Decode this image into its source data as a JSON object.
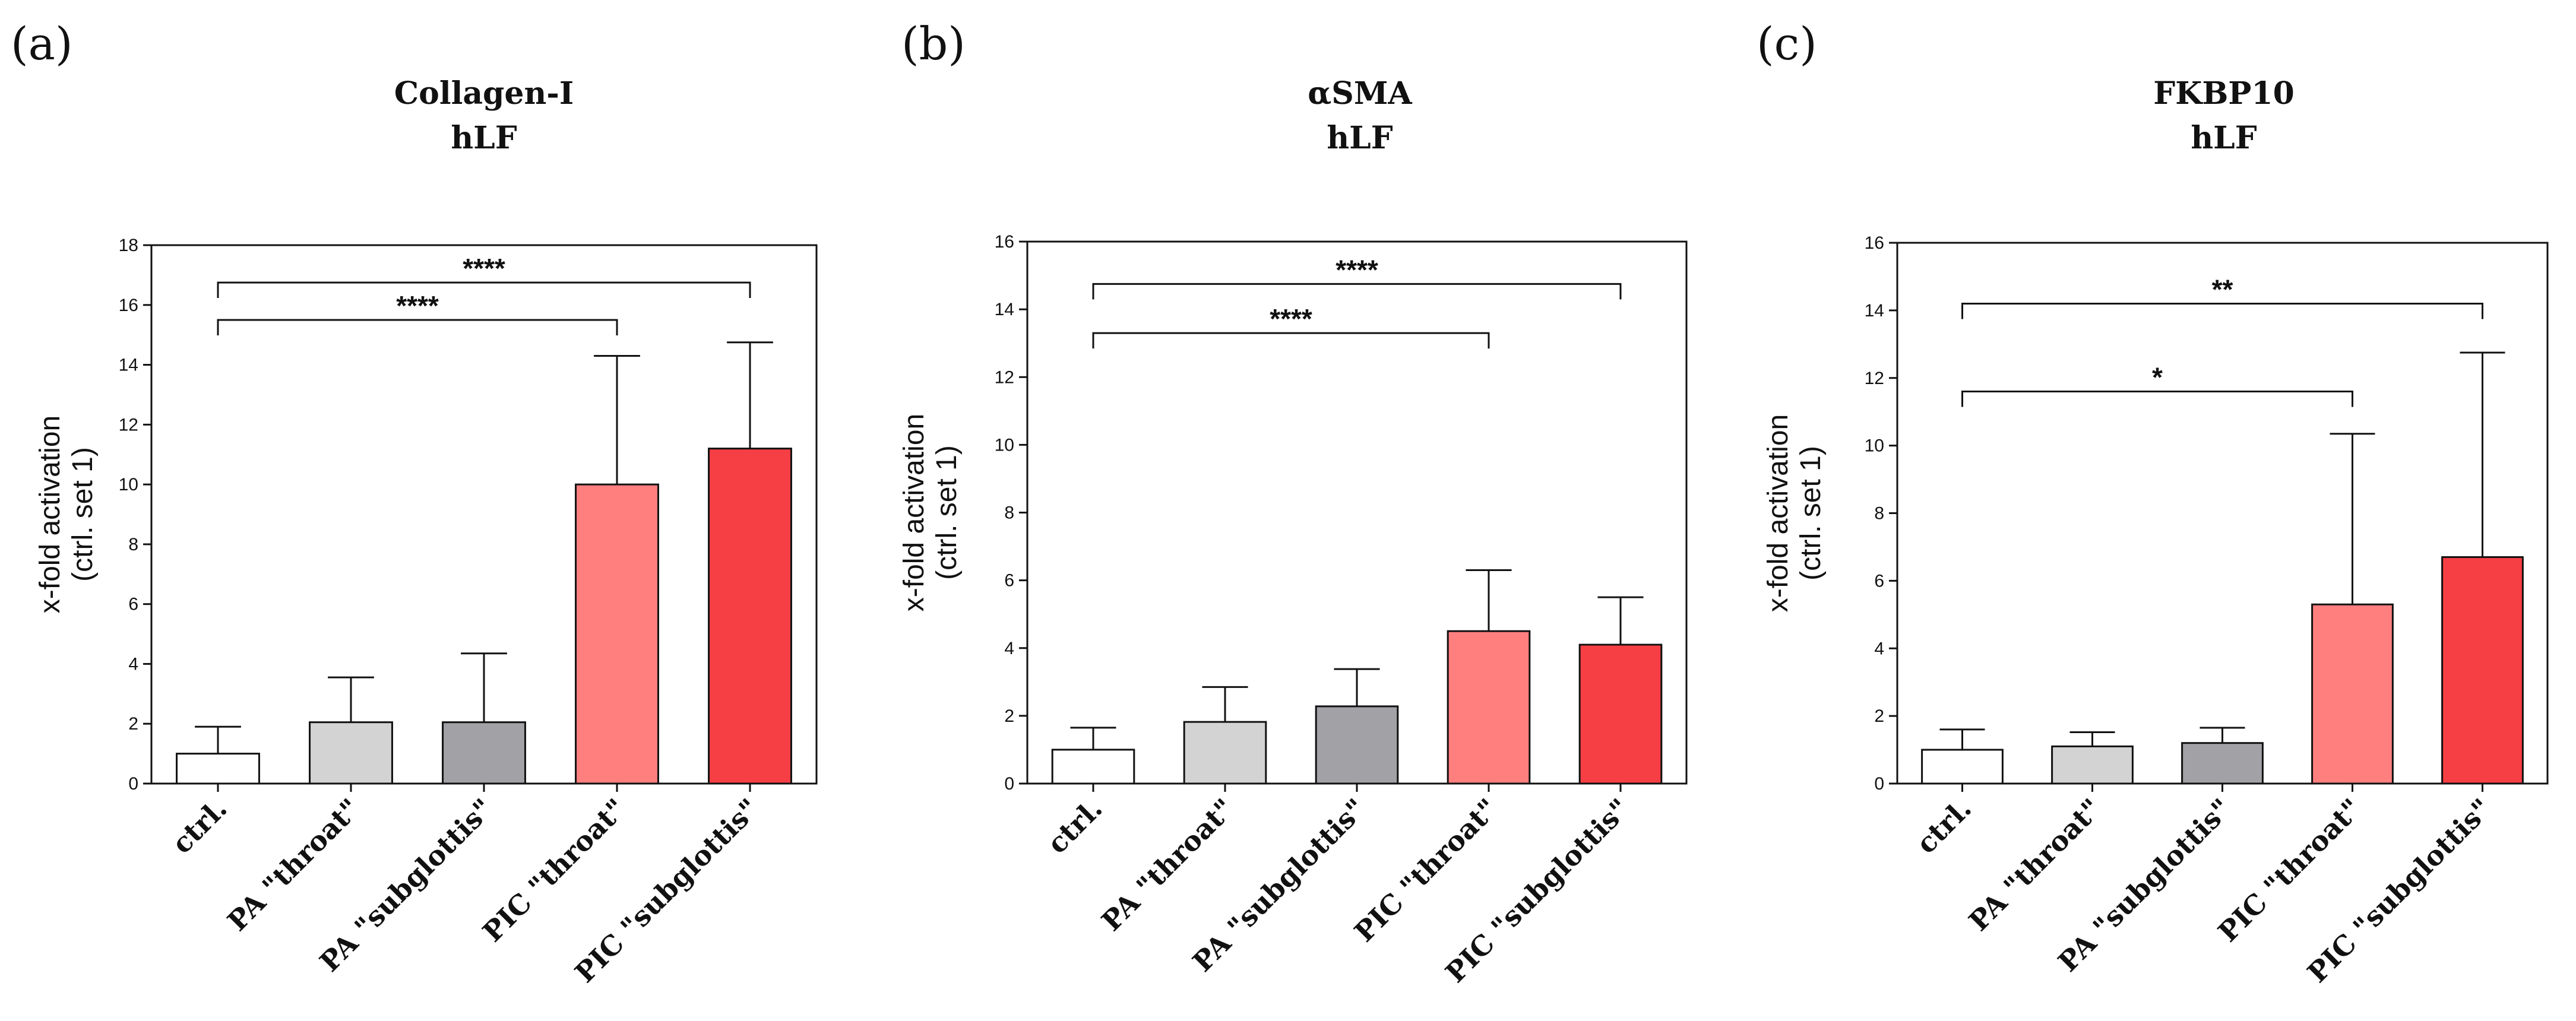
{
  "chart_data": [
    {
      "type": "bar",
      "panel": "(a)",
      "title": "Collagen-I",
      "subtitle": "hLF",
      "ylabel": "x-fold activation",
      "ylabel2": "(ctrl. set 1)",
      "ylim": [
        0,
        18
      ],
      "yticks": [
        0,
        2,
        4,
        6,
        8,
        10,
        12,
        14,
        16,
        18
      ],
      "categories": [
        "ctrl.",
        "PA \"throat\"",
        "PA \"subglottis\"",
        "PIC \"throat\"",
        "PIC \"subglottis\""
      ],
      "values": [
        1.0,
        2.05,
        2.05,
        10.0,
        11.2
      ],
      "errors": [
        0.9,
        1.5,
        2.3,
        4.3,
        3.55
      ],
      "colors": [
        "#ffffff",
        "#d3d3d3",
        "#a1a1a6",
        "#ff7f7f",
        "#f63f44"
      ],
      "significance": [
        {
          "from": 0,
          "to": 3,
          "y": 15.5,
          "label": "****"
        },
        {
          "from": 0,
          "to": 4,
          "y": 16.75,
          "label": "****"
        }
      ]
    },
    {
      "type": "bar",
      "panel": "(b)",
      "title": "αSMA",
      "subtitle": "hLF",
      "ylabel": "x-fold activation",
      "ylabel2": "(ctrl. set 1)",
      "ylim": [
        0,
        16
      ],
      "yticks": [
        0,
        2,
        4,
        6,
        8,
        10,
        12,
        14,
        16
      ],
      "categories": [
        "ctrl.",
        "PA \"throat\"",
        "PA \"subglottis\"",
        "PIC \"throat\"",
        "PIC \"subglottis\""
      ],
      "values": [
        1.0,
        1.82,
        2.28,
        4.5,
        4.1
      ],
      "errors": [
        0.65,
        1.03,
        1.1,
        1.8,
        1.4
      ],
      "colors": [
        "#ffffff",
        "#d3d3d3",
        "#a1a1a6",
        "#ff7f7f",
        "#f63f44"
      ],
      "significance": [
        {
          "from": 0,
          "to": 3,
          "y": 13.3,
          "label": "****"
        },
        {
          "from": 0,
          "to": 4,
          "y": 14.75,
          "label": "****"
        }
      ]
    },
    {
      "type": "bar",
      "panel": "(c)",
      "title": "FKBP10",
      "subtitle": "hLF",
      "ylabel": "x-fold activation",
      "ylabel2": "(ctrl. set 1)",
      "ylim": [
        0,
        16
      ],
      "yticks": [
        0,
        2,
        4,
        6,
        8,
        10,
        12,
        14,
        16
      ],
      "categories": [
        "ctrl.",
        "PA \"throat\"",
        "PA \"subglottis\"",
        "PIC \"throat\"",
        "PIC \"subglottis\""
      ],
      "values": [
        1.0,
        1.1,
        1.2,
        5.3,
        6.7
      ],
      "errors": [
        0.6,
        0.42,
        0.45,
        5.05,
        6.05
      ],
      "colors": [
        "#ffffff",
        "#d3d3d3",
        "#a1a1a6",
        "#ff7f7f",
        "#f63f44"
      ],
      "significance": [
        {
          "from": 0,
          "to": 3,
          "y": 11.6,
          "label": "*"
        },
        {
          "from": 0,
          "to": 4,
          "y": 14.2,
          "label": "**"
        }
      ]
    }
  ]
}
